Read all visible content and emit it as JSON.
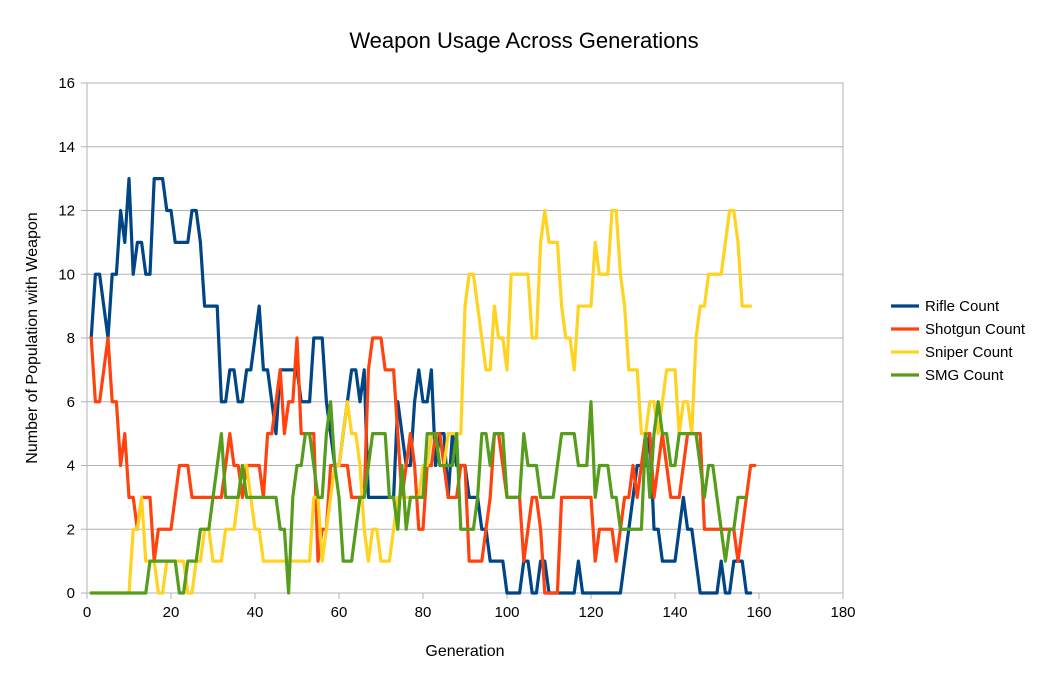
{
  "chart_data": {
    "type": "line",
    "title": "Weapon Usage Across Generations",
    "xlabel": "Generation",
    "ylabel": "Number of Population with Weapon",
    "xlim": [
      0,
      180
    ],
    "ylim": [
      0,
      16
    ],
    "xticks": [
      0,
      20,
      40,
      60,
      80,
      100,
      120,
      140,
      160,
      180
    ],
    "yticks": [
      0,
      2,
      4,
      6,
      8,
      10,
      12,
      14,
      16
    ],
    "grid": true,
    "legend": "right",
    "series": [
      {
        "name": "Rifle Count",
        "color": "#004586",
        "values": [
          8,
          10,
          10,
          9,
          8,
          10,
          10,
          12,
          11,
          13,
          10,
          11,
          11,
          10,
          10,
          13,
          13,
          13,
          12,
          12,
          11,
          11,
          11,
          11,
          12,
          12,
          11,
          9,
          9,
          9,
          9,
          6,
          6,
          7,
          7,
          6,
          6,
          7,
          7,
          8,
          9,
          7,
          7,
          6,
          5,
          7,
          7,
          7,
          7,
          7,
          6,
          6,
          6,
          8,
          8,
          8,
          6,
          5,
          4,
          4,
          5,
          6,
          7,
          7,
          6,
          7,
          3,
          3,
          3,
          3,
          3,
          3,
          3,
          6,
          5,
          4,
          4,
          6,
          7,
          6,
          6,
          7,
          4,
          5,
          5,
          3,
          5,
          4,
          4,
          4,
          3,
          3,
          3,
          2,
          2,
          1,
          1,
          1,
          1,
          0,
          0,
          0,
          0,
          1,
          1,
          0,
          0,
          1,
          1,
          0,
          0,
          0,
          0,
          0,
          0,
          0,
          1,
          0,
          0,
          0,
          0,
          0,
          0,
          0,
          0,
          0,
          0,
          1,
          2,
          3,
          4,
          4,
          4,
          5,
          2,
          2,
          1,
          1,
          1,
          1,
          2,
          3,
          2,
          2,
          1,
          0,
          0,
          0,
          0,
          0,
          1,
          0,
          0,
          1,
          1,
          1,
          0,
          0
        ]
      },
      {
        "name": "Shotgun Count",
        "color": "#ff420e",
        "values": [
          8,
          6,
          6,
          7,
          8,
          6,
          6,
          4,
          5,
          3,
          3,
          2,
          3,
          3,
          3,
          1,
          2,
          2,
          2,
          2,
          3,
          4,
          4,
          4,
          3,
          3,
          3,
          3,
          3,
          3,
          3,
          3,
          4,
          5,
          4,
          4,
          3,
          4,
          4,
          4,
          4,
          3,
          5,
          5,
          6,
          7,
          5,
          6,
          6,
          8,
          5,
          5,
          5,
          5,
          1,
          2,
          2,
          4,
          4,
          4,
          4,
          4,
          3,
          3,
          3,
          3,
          7,
          8,
          8,
          8,
          7,
          7,
          7,
          5,
          3,
          4,
          5,
          4,
          2,
          2,
          4,
          4,
          5,
          5,
          4,
          3,
          3,
          3,
          4,
          4,
          1,
          1,
          1,
          1,
          2,
          3,
          5,
          5,
          4,
          3,
          3,
          3,
          3,
          1,
          2,
          3,
          3,
          2,
          0,
          0,
          0,
          0,
          3,
          3,
          3,
          3,
          3,
          3,
          3,
          3,
          1,
          2,
          2,
          2,
          2,
          1,
          2,
          3,
          3,
          4,
          3,
          4,
          5,
          5,
          3,
          4,
          5,
          4,
          3,
          3,
          3,
          4,
          5,
          5,
          5,
          5,
          2,
          2,
          2,
          2,
          2,
          2,
          2,
          2,
          1,
          2,
          3,
          4,
          4
        ]
      },
      {
        "name": "Sniper Count",
        "color": "#ffd320",
        "values": [
          0,
          0,
          0,
          0,
          0,
          0,
          0,
          0,
          0,
          0,
          2,
          2,
          3,
          1,
          1,
          1,
          0,
          0,
          1,
          1,
          1,
          1,
          1,
          0,
          0,
          1,
          1,
          2,
          2,
          1,
          1,
          1,
          2,
          2,
          2,
          3,
          4,
          4,
          3,
          2,
          2,
          1,
          1,
          1,
          1,
          1,
          1,
          1,
          1,
          1,
          1,
          1,
          1,
          3,
          3,
          1,
          2,
          3,
          4,
          4,
          5,
          6,
          5,
          5,
          4,
          2,
          1,
          2,
          2,
          1,
          1,
          1,
          2,
          3,
          3,
          3,
          3,
          3,
          3,
          4,
          4,
          5,
          5,
          4,
          4,
          5,
          5,
          5,
          5,
          9,
          10,
          10,
          9,
          8,
          7,
          7,
          9,
          8,
          8,
          7,
          10,
          10,
          10,
          10,
          10,
          8,
          8,
          11,
          12,
          11,
          11,
          11,
          9,
          8,
          8,
          7,
          9,
          9,
          9,
          9,
          11,
          10,
          10,
          10,
          12,
          12,
          10,
          9,
          7,
          7,
          7,
          5,
          5,
          6,
          6,
          5,
          6,
          7,
          7,
          7,
          5,
          6,
          6,
          5,
          8,
          9,
          9,
          10,
          10,
          10,
          10,
          11,
          12,
          12,
          11,
          9,
          9,
          9
        ]
      },
      {
        "name": "SMG Count",
        "color": "#579d1c",
        "values": [
          0,
          0,
          0,
          0,
          0,
          0,
          0,
          0,
          0,
          0,
          0,
          0,
          0,
          0,
          1,
          1,
          1,
          1,
          1,
          1,
          1,
          0,
          0,
          1,
          1,
          1,
          2,
          2,
          2,
          3,
          4,
          5,
          3,
          3,
          3,
          3,
          4,
          3,
          3,
          3,
          3,
          3,
          3,
          3,
          3,
          2,
          2,
          0,
          3,
          4,
          4,
          5,
          5,
          4,
          3,
          3,
          5,
          6,
          4,
          3,
          1,
          1,
          1,
          2,
          3,
          3,
          4,
          5,
          5,
          5,
          5,
          3,
          3,
          2,
          4,
          2,
          3,
          3,
          3,
          3,
          5,
          5,
          5,
          4,
          4,
          4,
          4,
          5,
          2,
          2,
          2,
          2,
          3,
          5,
          5,
          4,
          5,
          5,
          5,
          3,
          3,
          3,
          3,
          5,
          4,
          4,
          4,
          3,
          3,
          3,
          3,
          4,
          5,
          5,
          5,
          5,
          4,
          4,
          4,
          6,
          3,
          4,
          4,
          4,
          3,
          3,
          2,
          2,
          2,
          2,
          2,
          2,
          5,
          3,
          5,
          6,
          5,
          5,
          4,
          4,
          5,
          5,
          5,
          5,
          5,
          4,
          3,
          4,
          4,
          3,
          2,
          1,
          2,
          2,
          3,
          3,
          3
        ]
      }
    ]
  }
}
